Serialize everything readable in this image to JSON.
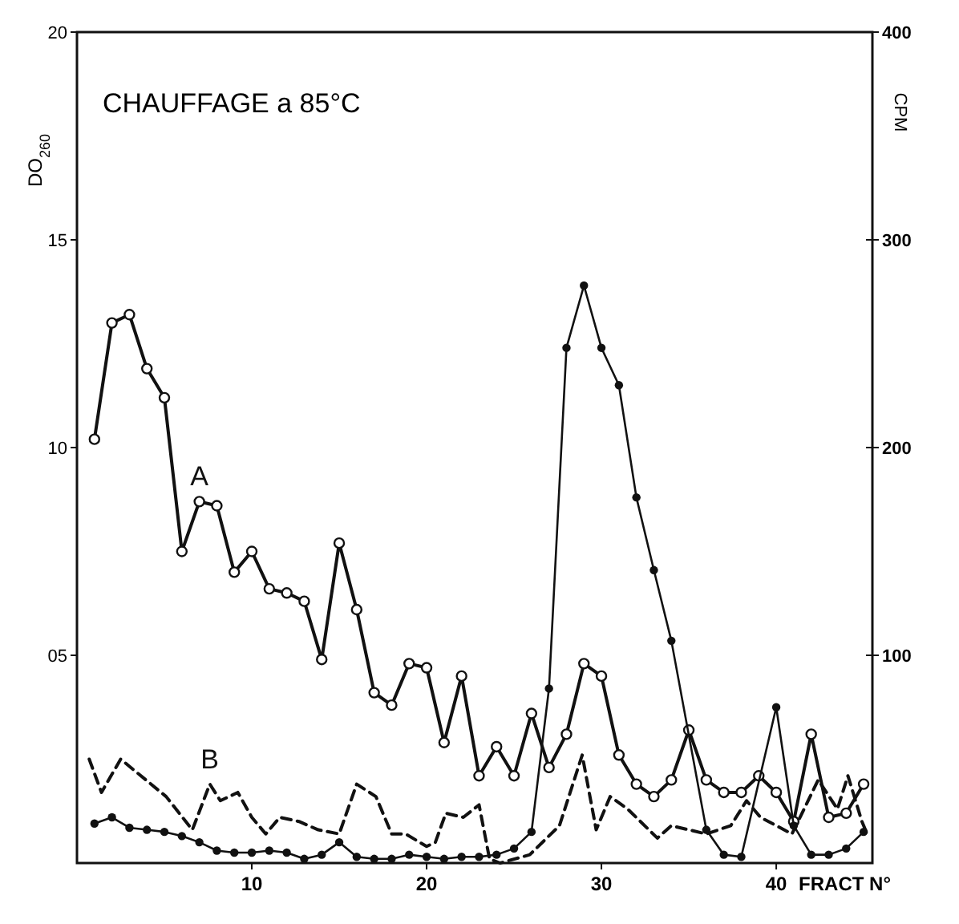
{
  "chart_data": {
    "type": "line",
    "title": "CHAUFFAGE a 85°C",
    "xlabel": "FRACT N°",
    "ylabel": "DO$_{260}$",
    "y2label": "CPM",
    "xlim": [
      0,
      45.5
    ],
    "xticks": [
      10,
      20,
      30,
      40
    ],
    "ylim": [
      0,
      20
    ],
    "yticks": [
      {
        "value": 5,
        "label": "05"
      },
      10,
      15,
      20
    ],
    "y2lim": [
      0,
      400
    ],
    "y2ticks": [
      100,
      200,
      300,
      400
    ],
    "grid": false,
    "series": [
      {
        "name": "A",
        "color": "#111111",
        "marker": "circle",
        "line_style": "solid",
        "x": [
          1,
          2,
          3,
          4,
          5,
          6,
          7,
          8,
          9,
          10,
          11,
          12,
          13,
          14,
          15,
          16,
          17,
          18,
          19,
          20,
          21,
          22,
          23,
          24,
          25,
          26,
          27,
          28,
          29,
          30,
          31,
          32,
          33,
          34,
          35,
          36,
          37,
          38,
          39,
          40,
          41,
          42,
          43,
          44,
          45
        ],
        "values": [
          10.2,
          13,
          13.2,
          11.9,
          11.2,
          7.5,
          8.7,
          8.6,
          7,
          7.5,
          6.6,
          6.5,
          6.3,
          4.9,
          7.7,
          6.1,
          4.1,
          3.8,
          4.8,
          4.7,
          2.9,
          4.5,
          2.1,
          2.8,
          2.1,
          3.6,
          2.3,
          3.1,
          4.8,
          4.5,
          2.6,
          1.9,
          1.6,
          2,
          3.2,
          2,
          1.7,
          1.7,
          2.1,
          1.7,
          1,
          3.1,
          1.1,
          1.2,
          1.9
        ]
      },
      {
        "name": "B",
        "color": "#111111",
        "marker": "none",
        "line_style": "dashed",
        "x": [
          0.7,
          1.4,
          2.5,
          5.1,
          6.6,
          7.6,
          8.2,
          9.2,
          10,
          10.8,
          11.6,
          12.7,
          13.8,
          15,
          16,
          17.1,
          18,
          18.8,
          20,
          20.5,
          21.1,
          22.1,
          23,
          23.6,
          24.2,
          25.9,
          27.6,
          28.9,
          29.7,
          30.5,
          31.5,
          33.2,
          34,
          36,
          37.4,
          38.3,
          39.1,
          40.9,
          42.4,
          43.5,
          44.1,
          44.9,
          45.1
        ],
        "values": [
          2.5,
          1.7,
          2.5,
          1.6,
          0.8,
          1.9,
          1.5,
          1.7,
          1.1,
          0.7,
          1.1,
          1,
          0.8,
          0.7,
          1.9,
          1.6,
          0.7,
          0.7,
          0.4,
          0.5,
          1.2,
          1.1,
          1.4,
          0.1,
          0,
          0.2,
          0.9,
          2.6,
          0.8,
          1.6,
          1.3,
          0.6,
          0.9,
          0.7,
          0.9,
          1.5,
          1.1,
          0.7,
          2,
          1.3,
          2.1,
          1,
          0.8
        ]
      },
      {
        "color": "#111111",
        "marker": "circle_filled",
        "line_style": "solid",
        "axis": "y2",
        "x": [
          1,
          2,
          3,
          4,
          5,
          6,
          7,
          8,
          9,
          10,
          11,
          12,
          13,
          14,
          15,
          16,
          17,
          18,
          19,
          20,
          21,
          22,
          23,
          24,
          25,
          26,
          27,
          28,
          29,
          30,
          31,
          32,
          33,
          34,
          36,
          37,
          38,
          40,
          41,
          42,
          43,
          44,
          45
        ],
        "values": [
          19,
          22,
          17,
          16,
          15,
          13,
          10,
          6,
          5,
          5,
          6,
          5,
          2,
          4,
          10,
          3,
          2,
          2,
          4,
          3,
          2,
          3,
          3,
          4,
          7,
          15,
          84,
          248,
          278,
          248,
          230,
          176,
          141,
          107,
          16,
          4,
          3,
          75,
          18,
          4,
          4,
          7,
          15
        ]
      }
    ]
  }
}
